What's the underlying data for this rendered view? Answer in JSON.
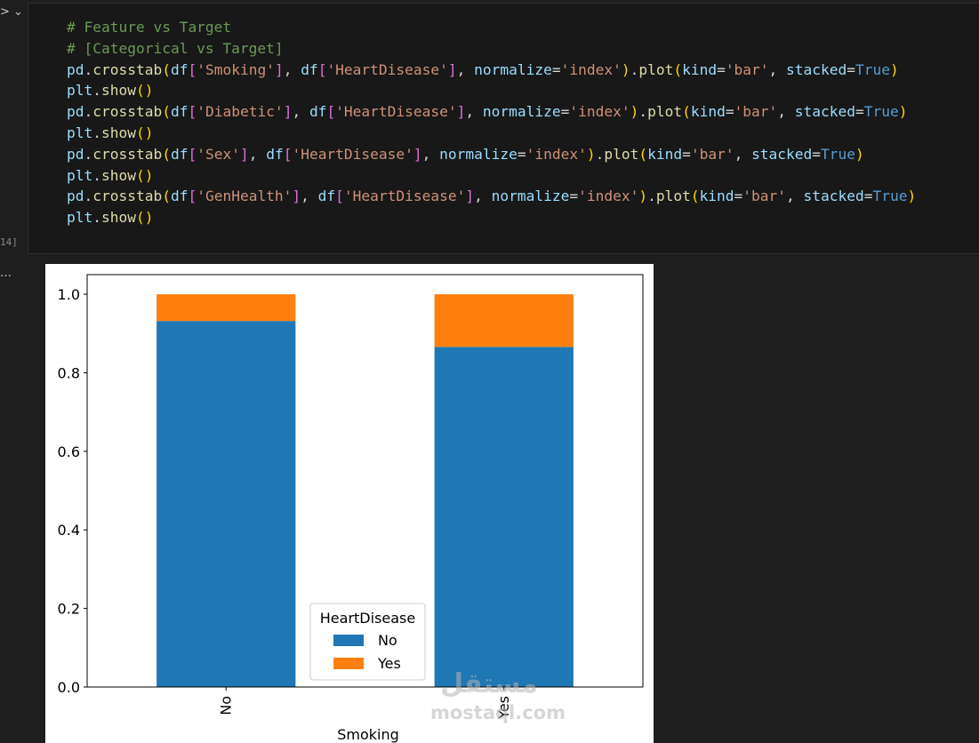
{
  "gutter": {
    "chevron": "> ⌄",
    "execution_count": "14]",
    "output_marker": "…"
  },
  "code_cell": {
    "lines": [
      [
        {
          "t": "# Feature vs Target",
          "k": "comment"
        }
      ],
      [
        {
          "t": "# [Categorical vs Target]",
          "k": "comment"
        }
      ],
      [
        {
          "t": "pd",
          "k": "var"
        },
        {
          "t": ".",
          "k": "punct"
        },
        {
          "t": "crosstab",
          "k": "fn"
        },
        {
          "t": "(",
          "k": "b1"
        },
        {
          "t": "df",
          "k": "var"
        },
        {
          "t": "[",
          "k": "b2"
        },
        {
          "t": "'Smoking'",
          "k": "str"
        },
        {
          "t": "]",
          "k": "b2"
        },
        {
          "t": ", ",
          "k": "punct"
        },
        {
          "t": "df",
          "k": "var"
        },
        {
          "t": "[",
          "k": "b2"
        },
        {
          "t": "'HeartDisease'",
          "k": "str"
        },
        {
          "t": "]",
          "k": "b2"
        },
        {
          "t": ", ",
          "k": "punct"
        },
        {
          "t": "normalize",
          "k": "var"
        },
        {
          "t": "=",
          "k": "punct"
        },
        {
          "t": "'index'",
          "k": "str"
        },
        {
          "t": ")",
          "k": "b1"
        },
        {
          "t": ".",
          "k": "punct"
        },
        {
          "t": "plot",
          "k": "fn"
        },
        {
          "t": "(",
          "k": "b1"
        },
        {
          "t": "kind",
          "k": "var"
        },
        {
          "t": "=",
          "k": "punct"
        },
        {
          "t": "'bar'",
          "k": "str"
        },
        {
          "t": ", ",
          "k": "punct"
        },
        {
          "t": "stacked",
          "k": "var"
        },
        {
          "t": "=",
          "k": "punct"
        },
        {
          "t": "True",
          "k": "kw"
        },
        {
          "t": ")",
          "k": "b1"
        }
      ],
      [
        {
          "t": "plt",
          "k": "var"
        },
        {
          "t": ".",
          "k": "punct"
        },
        {
          "t": "show",
          "k": "fn"
        },
        {
          "t": "()",
          "k": "b1"
        }
      ],
      [
        {
          "t": "pd",
          "k": "var"
        },
        {
          "t": ".",
          "k": "punct"
        },
        {
          "t": "crosstab",
          "k": "fn"
        },
        {
          "t": "(",
          "k": "b1"
        },
        {
          "t": "df",
          "k": "var"
        },
        {
          "t": "[",
          "k": "b2"
        },
        {
          "t": "'Diabetic'",
          "k": "str"
        },
        {
          "t": "]",
          "k": "b2"
        },
        {
          "t": ", ",
          "k": "punct"
        },
        {
          "t": "df",
          "k": "var"
        },
        {
          "t": "[",
          "k": "b2"
        },
        {
          "t": "'HeartDisease'",
          "k": "str"
        },
        {
          "t": "]",
          "k": "b2"
        },
        {
          "t": ", ",
          "k": "punct"
        },
        {
          "t": "normalize",
          "k": "var"
        },
        {
          "t": "=",
          "k": "punct"
        },
        {
          "t": "'index'",
          "k": "str"
        },
        {
          "t": ")",
          "k": "b1"
        },
        {
          "t": ".",
          "k": "punct"
        },
        {
          "t": "plot",
          "k": "fn"
        },
        {
          "t": "(",
          "k": "b1"
        },
        {
          "t": "kind",
          "k": "var"
        },
        {
          "t": "=",
          "k": "punct"
        },
        {
          "t": "'bar'",
          "k": "str"
        },
        {
          "t": ", ",
          "k": "punct"
        },
        {
          "t": "stacked",
          "k": "var"
        },
        {
          "t": "=",
          "k": "punct"
        },
        {
          "t": "True",
          "k": "kw"
        },
        {
          "t": ")",
          "k": "b1"
        }
      ],
      [
        {
          "t": "plt",
          "k": "var"
        },
        {
          "t": ".",
          "k": "punct"
        },
        {
          "t": "show",
          "k": "fn"
        },
        {
          "t": "()",
          "k": "b1"
        }
      ],
      [
        {
          "t": "pd",
          "k": "var"
        },
        {
          "t": ".",
          "k": "punct"
        },
        {
          "t": "crosstab",
          "k": "fn"
        },
        {
          "t": "(",
          "k": "b1"
        },
        {
          "t": "df",
          "k": "var"
        },
        {
          "t": "[",
          "k": "b2"
        },
        {
          "t": "'Sex'",
          "k": "str"
        },
        {
          "t": "]",
          "k": "b2"
        },
        {
          "t": ", ",
          "k": "punct"
        },
        {
          "t": "df",
          "k": "var"
        },
        {
          "t": "[",
          "k": "b2"
        },
        {
          "t": "'HeartDisease'",
          "k": "str"
        },
        {
          "t": "]",
          "k": "b2"
        },
        {
          "t": ", ",
          "k": "punct"
        },
        {
          "t": "normalize",
          "k": "var"
        },
        {
          "t": "=",
          "k": "punct"
        },
        {
          "t": "'index'",
          "k": "str"
        },
        {
          "t": ")",
          "k": "b1"
        },
        {
          "t": ".",
          "k": "punct"
        },
        {
          "t": "plot",
          "k": "fn"
        },
        {
          "t": "(",
          "k": "b1"
        },
        {
          "t": "kind",
          "k": "var"
        },
        {
          "t": "=",
          "k": "punct"
        },
        {
          "t": "'bar'",
          "k": "str"
        },
        {
          "t": ", ",
          "k": "punct"
        },
        {
          "t": "stacked",
          "k": "var"
        },
        {
          "t": "=",
          "k": "punct"
        },
        {
          "t": "True",
          "k": "kw"
        },
        {
          "t": ")",
          "k": "b1"
        }
      ],
      [
        {
          "t": "plt",
          "k": "var"
        },
        {
          "t": ".",
          "k": "punct"
        },
        {
          "t": "show",
          "k": "fn"
        },
        {
          "t": "()",
          "k": "b1"
        }
      ],
      [
        {
          "t": "pd",
          "k": "var"
        },
        {
          "t": ".",
          "k": "punct"
        },
        {
          "t": "crosstab",
          "k": "fn"
        },
        {
          "t": "(",
          "k": "b1"
        },
        {
          "t": "df",
          "k": "var"
        },
        {
          "t": "[",
          "k": "b2"
        },
        {
          "t": "'GenHealth'",
          "k": "str"
        },
        {
          "t": "]",
          "k": "b2"
        },
        {
          "t": ", ",
          "k": "punct"
        },
        {
          "t": "df",
          "k": "var"
        },
        {
          "t": "[",
          "k": "b2"
        },
        {
          "t": "'HeartDisease'",
          "k": "str"
        },
        {
          "t": "]",
          "k": "b2"
        },
        {
          "t": ", ",
          "k": "punct"
        },
        {
          "t": "normalize",
          "k": "var"
        },
        {
          "t": "=",
          "k": "punct"
        },
        {
          "t": "'index'",
          "k": "str"
        },
        {
          "t": ")",
          "k": "b1"
        },
        {
          "t": ".",
          "k": "punct"
        },
        {
          "t": "plot",
          "k": "fn"
        },
        {
          "t": "(",
          "k": "b1"
        },
        {
          "t": "kind",
          "k": "var"
        },
        {
          "t": "=",
          "k": "punct"
        },
        {
          "t": "'bar'",
          "k": "str"
        },
        {
          "t": ", ",
          "k": "punct"
        },
        {
          "t": "stacked",
          "k": "var"
        },
        {
          "t": "=",
          "k": "punct"
        },
        {
          "t": "True",
          "k": "kw"
        },
        {
          "t": ")",
          "k": "b1"
        }
      ],
      [
        {
          "t": "plt",
          "k": "var"
        },
        {
          "t": ".",
          "k": "punct"
        },
        {
          "t": "show",
          "k": "fn"
        },
        {
          "t": "()",
          "k": "b1"
        }
      ]
    ]
  },
  "chart_data": {
    "type": "bar",
    "stacked": true,
    "categories": [
      "No",
      "Yes"
    ],
    "series": [
      {
        "name": "No",
        "values": [
          0.932,
          0.866
        ],
        "color": "#1f77b4"
      },
      {
        "name": "Yes",
        "values": [
          0.068,
          0.134
        ],
        "color": "#ff7f0e"
      }
    ],
    "xlabel": "Smoking",
    "ylabel": "",
    "ylim": [
      0,
      1.05
    ],
    "yticks": [
      "0.0",
      "0.2",
      "0.4",
      "0.6",
      "0.8",
      "1.0"
    ],
    "ytick_values": [
      0,
      0.2,
      0.4,
      0.6,
      0.8,
      1.0
    ],
    "legend": {
      "title": "HeartDisease",
      "placement": "lower-center"
    },
    "grid": false
  },
  "watermark": {
    "arabic": "مستقل",
    "latin": "mostaql.com"
  }
}
